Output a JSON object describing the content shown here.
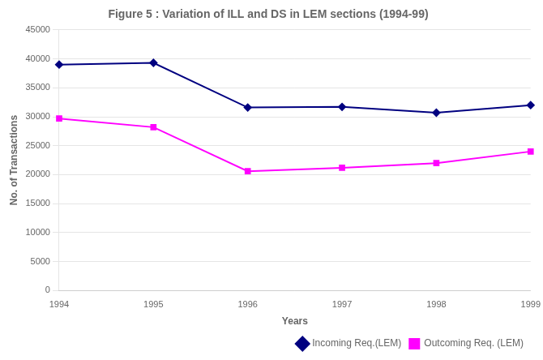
{
  "chart_data": {
    "type": "line",
    "title": "Figure 5 : Variation of ILL and DS in LEM sections (1994-99)",
    "x_label": "Years",
    "y_label": "No. of Transactions",
    "categories": [
      "1994",
      "1995",
      "1996",
      "1997",
      "1998",
      "1999"
    ],
    "series": [
      {
        "name": "Incoming Req.(LEM)",
        "color": "#000080",
        "marker": "diamond",
        "line_style": "solid",
        "values": [
          39000,
          39300,
          31600,
          31700,
          30700,
          32000
        ]
      },
      {
        "name": "Outcoming Req. (LEM)",
        "color": "#FF00FF",
        "marker": "square",
        "line_style": "solid",
        "values": [
          29700,
          28200,
          20600,
          21200,
          22000,
          24000
        ]
      }
    ],
    "ylim": [
      0,
      45000
    ],
    "yticks": [
      0,
      5000,
      10000,
      15000,
      20000,
      25000,
      30000,
      35000,
      40000,
      45000
    ],
    "grid": true,
    "legend": "lower right"
  }
}
